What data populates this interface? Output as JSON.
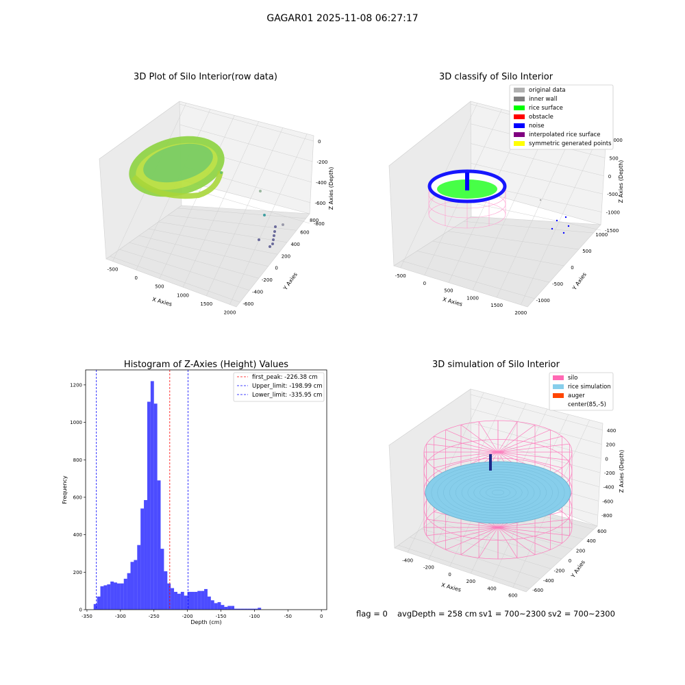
{
  "figure": {
    "suptitle": "GAGAR01 2025-11-08 06:27:17"
  },
  "footer": {
    "flag": "flag = 0",
    "avg": "avgDepth = 258 cm",
    "sv1": "sv1 = 700~2300",
    "sv2": "sv2 = 700~2300"
  },
  "colors": {
    "hist_bar": "#0000ff",
    "first_peak": "#ff0000",
    "limits": "#0000ff",
    "silo": "#ff69b4",
    "rice": "#87ceeb",
    "auger": "#ff4500",
    "rice_surface": "#00ff00",
    "noise": "#0000ff"
  },
  "chart_data": [
    {
      "type": "scatter",
      "title": "3D Plot of Silo Interior(row data)",
      "xlabel": "X Axies",
      "ylabel": "Y Axies",
      "zlabel": "Z Axies (Depth)",
      "x_ticks": [
        "-500",
        "0",
        "500",
        "1000",
        "1500",
        "2000"
      ],
      "y_ticks": [
        "-600",
        "-400",
        "-200",
        "0",
        "200",
        "400",
        "600",
        "800"
      ],
      "z_ticks": [
        "0",
        "-200",
        "-400",
        "-600",
        "-800"
      ]
    },
    {
      "type": "scatter",
      "title": "3D classify of Silo Interior",
      "xlabel": "X Axies",
      "ylabel": "Y Axies",
      "zlabel": "Z Axies (Depth)",
      "x_ticks": [
        "-500",
        "0",
        "500",
        "1000",
        "1500",
        "2000"
      ],
      "y_ticks": [
        "-1000",
        "-500",
        "0",
        "500",
        "1000"
      ],
      "z_ticks": [
        "1000",
        "500",
        "0",
        "-500",
        "-1000",
        "-1500"
      ],
      "legend": [
        {
          "label": "original data",
          "color": "#b0b0b0"
        },
        {
          "label": "inner wall",
          "color": "#808080"
        },
        {
          "label": "rice surface",
          "color": "#00ff00"
        },
        {
          "label": "obstacle",
          "color": "#ff0000"
        },
        {
          "label": "noise",
          "color": "#0000ff"
        },
        {
          "label": "interpolated rice surface",
          "color": "#800080"
        },
        {
          "label": "symmetric generated points",
          "color": "#ffff00"
        }
      ]
    },
    {
      "type": "bar",
      "title": "Histogram of Z-Axies (Height) Values",
      "xlabel": "Depth (cm)",
      "ylabel": "Frequency",
      "xlim": [
        -352,
        8
      ],
      "ylim": [
        0,
        1280
      ],
      "x_ticks": [
        -350,
        -300,
        -250,
        -200,
        -150,
        -100,
        -50,
        0
      ],
      "y_ticks": [
        0,
        200,
        400,
        600,
        800,
        1000,
        1200
      ],
      "bin_start": -340,
      "bin_width": 5,
      "values": [
        30,
        70,
        125,
        130,
        135,
        150,
        145,
        140,
        140,
        165,
        195,
        255,
        265,
        345,
        540,
        585,
        1110,
        1220,
        1100,
        690,
        325,
        205,
        140,
        115,
        95,
        85,
        95,
        75,
        95,
        95,
        95,
        100,
        100,
        110,
        70,
        50,
        35,
        40,
        25,
        15,
        20,
        20,
        5,
        5,
        5,
        5,
        5,
        5,
        5,
        10
      ],
      "lines": [
        {
          "label": "first_peak: -226.38 cm",
          "x": -226.38,
          "color": "#ff0000"
        },
        {
          "label": "Upper_limit: -198.99 cm",
          "x": -198.99,
          "color": "#0000ff"
        },
        {
          "label": "Lower_limit: -335.95 cm",
          "x": -335.95,
          "color": "#0000ff"
        }
      ]
    },
    {
      "type": "area",
      "title": "3D simulation of Silo Interior",
      "xlabel": "X Axies",
      "ylabel": "Y Axies",
      "zlabel": "Z Axies (Depth)",
      "x_ticks": [
        "-400",
        "-200",
        "0",
        "200",
        "400",
        "600"
      ],
      "y_ticks": [
        "-600",
        "-400",
        "-200",
        "0",
        "200",
        "400",
        "600"
      ],
      "z_ticks": [
        "400",
        "200",
        "0",
        "-200",
        "-400",
        "-600",
        "-800"
      ],
      "legend": [
        {
          "label": "silo",
          "color": "#ff69b4"
        },
        {
          "label": "rice simulation",
          "color": "#87ceeb"
        },
        {
          "label": "auger",
          "color": "#ff4500"
        },
        {
          "label": "center(85,-5)",
          "color": "#ffffff"
        }
      ]
    }
  ]
}
